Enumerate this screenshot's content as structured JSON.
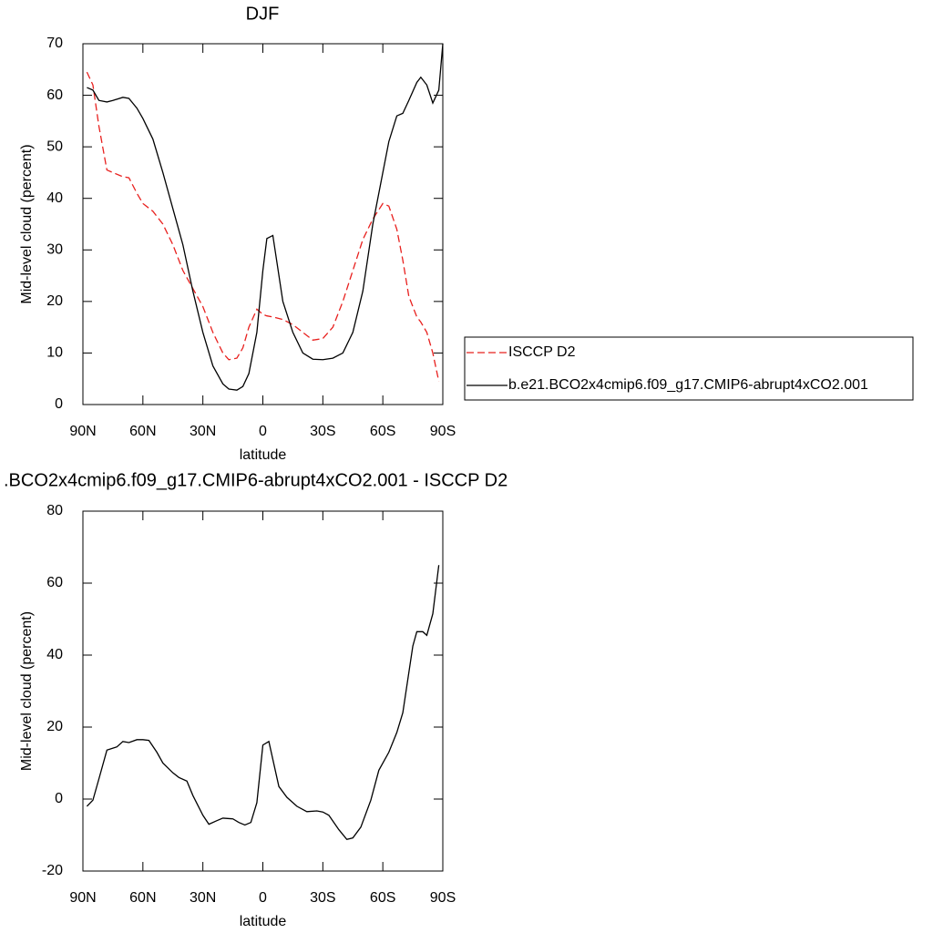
{
  "chart_data": [
    {
      "type": "line",
      "title": "DJF",
      "xlabel": "latitude",
      "ylabel": "Mid-level cloud (percent)",
      "x": [
        88,
        85,
        82,
        78,
        75,
        70,
        67,
        63,
        60,
        55,
        50,
        45,
        40,
        35,
        30,
        25,
        20,
        17,
        13,
        10,
        7,
        3,
        0,
        -2,
        -5,
        -10,
        -15,
        -20,
        -25,
        -30,
        -35,
        -40,
        -45,
        -50,
        -55,
        -60,
        -63,
        -67,
        -70,
        -73,
        -77,
        -79,
        -82,
        -85,
        -88,
        -90
      ],
      "series": [
        {
          "name": "ISCCP D2",
          "color": "#e8201e",
          "dashed": true,
          "values": [
            64.5,
            62,
            54,
            45.5,
            45,
            44.2,
            44,
            41,
            39,
            37.5,
            35,
            31,
            26,
            22.5,
            19,
            14,
            10,
            8.7,
            9,
            11,
            15,
            18.5,
            17.5,
            17.2,
            17,
            16.5,
            15.5,
            14,
            12.5,
            12.8,
            15,
            20,
            26,
            32,
            36,
            39,
            38.5,
            34,
            28,
            21,
            17,
            16,
            14,
            10,
            4.5,
            null
          ]
        },
        {
          "name": "b.e21.BCO2x4cmip6.f09_g17.CMIP6-abrupt4xCO2.001",
          "color": "#000000",
          "dashed": false,
          "values": [
            61.5,
            61,
            59,
            58.7,
            59,
            59.6,
            59.4,
            57.5,
            55.5,
            51.5,
            45,
            38,
            31,
            22,
            14,
            7.5,
            4,
            3,
            2.8,
            3.5,
            6,
            14,
            26,
            32.2,
            32.8,
            20,
            14,
            10,
            8.8,
            8.7,
            9,
            10,
            14,
            22,
            35,
            45,
            51,
            56,
            56.5,
            59,
            62.5,
            63.5,
            62,
            58.5,
            61,
            70
          ]
        }
      ],
      "xlim": [
        90,
        -90
      ],
      "xticks": [
        {
          "value": 90,
          "label": "90N"
        },
        {
          "value": 60,
          "label": "60N"
        },
        {
          "value": 30,
          "label": "30N"
        },
        0,
        {
          "value": -30,
          "label": "30S"
        },
        {
          "value": -60,
          "label": "60S"
        },
        {
          "value": -90,
          "label": "90S"
        }
      ],
      "ylim": [
        0,
        70
      ],
      "yticks": [
        0,
        10,
        20,
        30,
        40,
        50,
        60,
        70
      ],
      "legend": "right"
    },
    {
      "type": "line",
      "title": ".BCO2x4cmip6.f09_g17.CMIP6-abrupt4xCO2.001 - ISCCP D2",
      "xlabel": "latitude",
      "ylabel": "Mid-level cloud (percent)",
      "x": [
        88,
        85,
        82,
        78,
        73,
        70,
        67,
        63,
        60,
        57,
        53,
        50,
        45,
        42,
        38,
        35,
        30,
        27,
        23,
        20,
        15,
        12,
        9,
        6,
        3,
        0,
        -3,
        -8,
        -12,
        -17,
        -22,
        -27,
        -30,
        -33,
        -38,
        -42,
        -45,
        -49,
        -54,
        -58,
        -63,
        -67,
        -70,
        -75,
        -77,
        -80,
        -82,
        -85,
        -88
      ],
      "series": [
        {
          "color": "#000000",
          "dashed": false,
          "values": [
            -2,
            -0.3,
            5.6,
            13.6,
            14.5,
            16,
            15.7,
            16.5,
            16.5,
            16.3,
            13,
            10,
            7.3,
            6,
            5,
            1,
            -4.5,
            -7,
            -6,
            -5.3,
            -5.5,
            -6.5,
            -7.2,
            -6.5,
            -1,
            15,
            16,
            3.5,
            0.5,
            -2,
            -3.5,
            -3.3,
            -3.6,
            -4.5,
            -8.5,
            -11.2,
            -10.8,
            -7.8,
            -0.3,
            8,
            13,
            18.5,
            24,
            42.5,
            46.5,
            46.5,
            45.5,
            51.5,
            65
          ]
        }
      ],
      "xlim": [
        90,
        -90
      ],
      "xticks": [
        {
          "value": 90,
          "label": "90N"
        },
        {
          "value": 60,
          "label": "60N"
        },
        {
          "value": 30,
          "label": "30N"
        },
        0,
        {
          "value": -30,
          "label": "30S"
        },
        {
          "value": -60,
          "label": "60S"
        },
        {
          "value": -90,
          "label": "90S"
        }
      ],
      "ylim": [
        -20,
        80
      ],
      "yticks": [
        -20,
        0,
        20,
        40,
        60,
        80
      ]
    }
  ]
}
